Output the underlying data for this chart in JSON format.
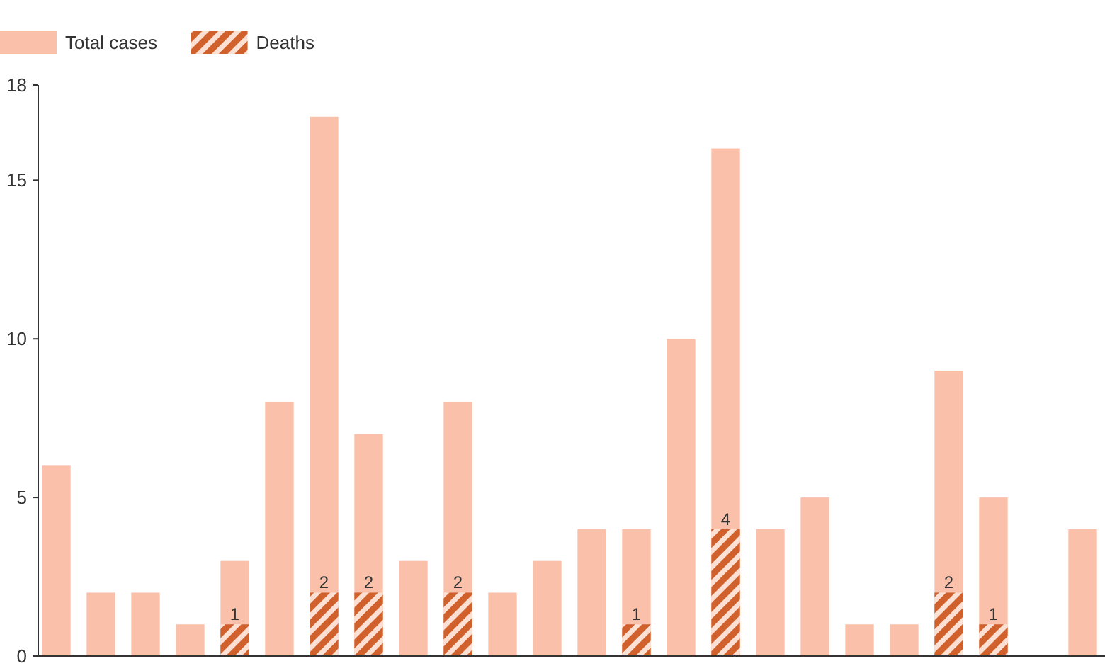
{
  "chart_data": {
    "type": "bar",
    "categories": [
      null,
      null,
      null,
      null,
      null,
      null,
      null,
      null,
      null,
      null,
      null,
      null,
      null,
      null,
      null,
      null,
      null,
      null,
      null,
      null,
      null,
      null,
      null,
      null
    ],
    "series": [
      {
        "name": "Total cases",
        "color": "#fbc0aa",
        "values": [
          6,
          2,
          2,
          1,
          3,
          8,
          17,
          7,
          3,
          8,
          2,
          3,
          4,
          4,
          10,
          16,
          4,
          5,
          1,
          1,
          9,
          5,
          0,
          4
        ]
      },
      {
        "name": "Deaths",
        "color": "#d0602c",
        "values": [
          0,
          0,
          0,
          0,
          1,
          0,
          2,
          2,
          0,
          2,
          0,
          0,
          0,
          1,
          0,
          4,
          0,
          0,
          0,
          0,
          2,
          1,
          0,
          0
        ],
        "value_labels": [
          null,
          null,
          null,
          null,
          "1",
          null,
          "2",
          "2",
          null,
          "2",
          null,
          null,
          null,
          "1",
          null,
          "4",
          null,
          null,
          null,
          null,
          "2",
          "1",
          null,
          null
        ]
      }
    ],
    "ylim": [
      0,
      18
    ],
    "yticks": [
      0,
      5,
      10,
      15,
      18
    ],
    "legend": "top left",
    "grid": false
  }
}
